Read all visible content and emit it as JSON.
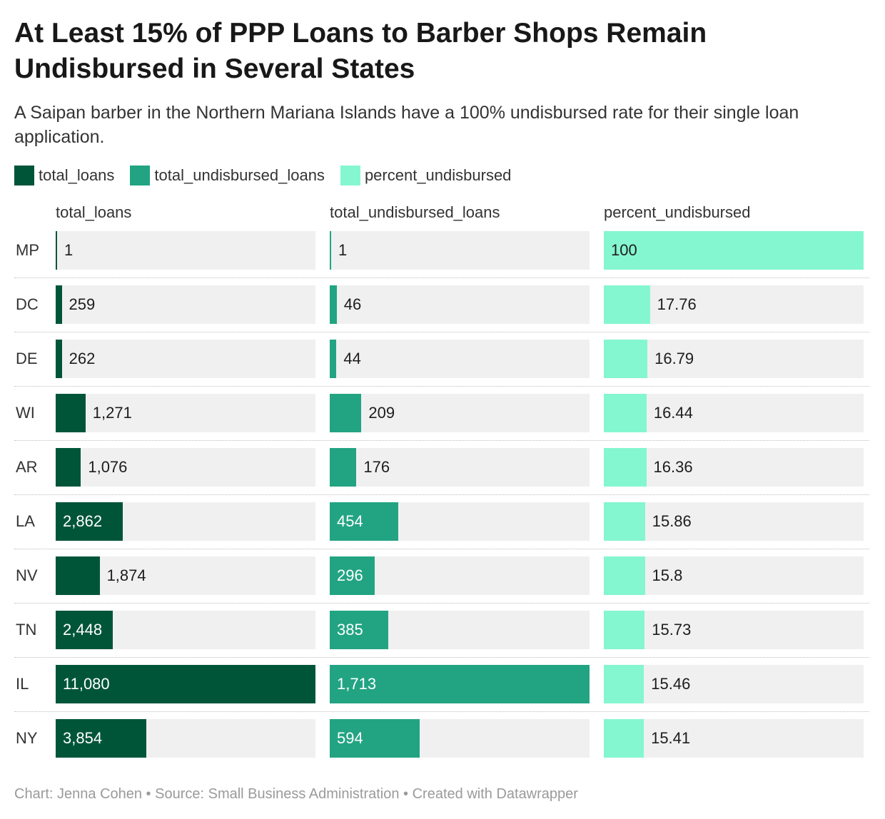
{
  "title": "At Least 15% of PPP Loans to Barber Shops Remain Undisbursed in Several States",
  "subtitle": "A Saipan barber in the Northern Mariana Islands have a 100% undisbursed rate for their single loan application.",
  "footer": "Chart: Jenna Cohen • Source: Small Business Administration • Created with Datawrapper",
  "colors": {
    "total_loans": "#005539",
    "total_undisbursed_loans": "#22a483",
    "percent_undisbursed": "#84f6d0",
    "row_background": "#f0f0f0"
  },
  "chart_data": {
    "type": "bar",
    "orientation": "horizontal",
    "layout": "split-bars",
    "categories": [
      "MP",
      "DC",
      "DE",
      "WI",
      "AR",
      "LA",
      "NV",
      "TN",
      "IL",
      "NY"
    ],
    "series": [
      {
        "name": "total_loans",
        "values": [
          1,
          259,
          262,
          1271,
          1076,
          2862,
          1874,
          2448,
          11080,
          3854
        ],
        "labels": [
          "1",
          "259",
          "262",
          "1,271",
          "1,076",
          "2,862",
          "1,874",
          "2,448",
          "11,080",
          "3,854"
        ],
        "max": 11080
      },
      {
        "name": "total_undisbursed_loans",
        "values": [
          1,
          46,
          44,
          209,
          176,
          454,
          296,
          385,
          1713,
          594
        ],
        "labels": [
          "1",
          "46",
          "44",
          "209",
          "176",
          "454",
          "296",
          "385",
          "1,713",
          "594"
        ],
        "max": 1713
      },
      {
        "name": "percent_undisbursed",
        "values": [
          100,
          17.76,
          16.79,
          16.44,
          16.36,
          15.86,
          15.8,
          15.73,
          15.46,
          15.41
        ],
        "labels": [
          "100",
          "17.76",
          "16.79",
          "16.44",
          "16.36",
          "15.86",
          "15.8",
          "15.73",
          "15.46",
          "15.41"
        ],
        "max": 100
      }
    ],
    "legend": "top"
  }
}
